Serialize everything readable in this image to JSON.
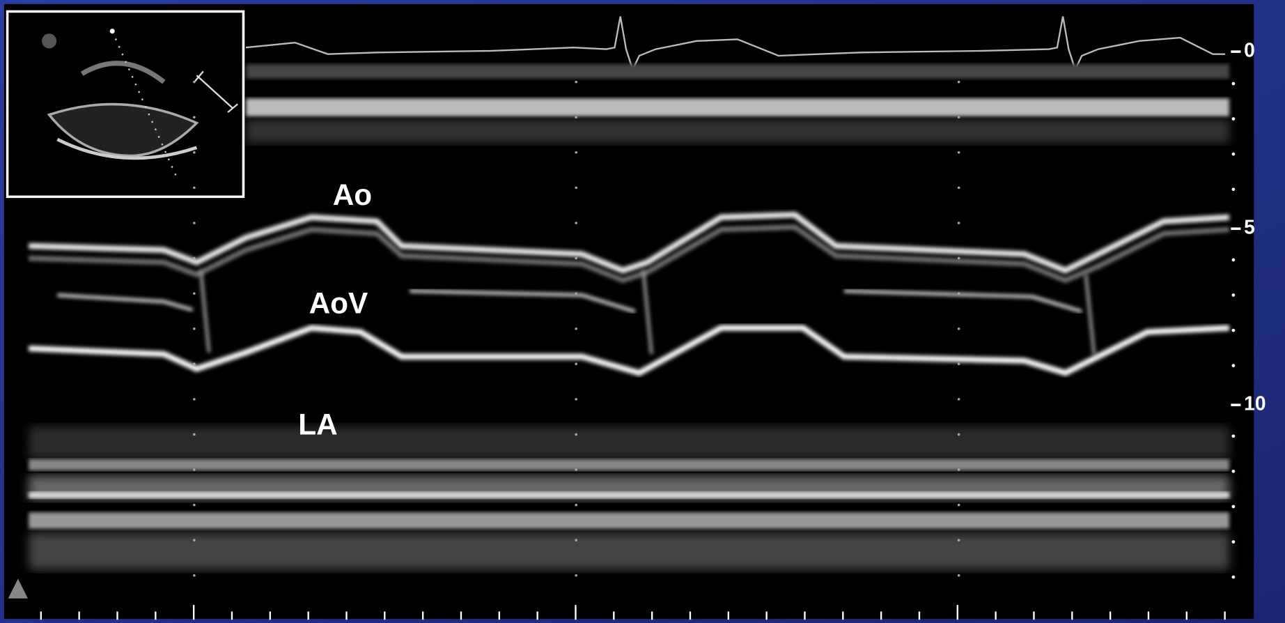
{
  "labels": {
    "aorta": "Ao",
    "aortic_valve": "AoV",
    "left_atrium": "LA"
  },
  "depth_scale": [
    "0",
    "5",
    "10"
  ]
}
